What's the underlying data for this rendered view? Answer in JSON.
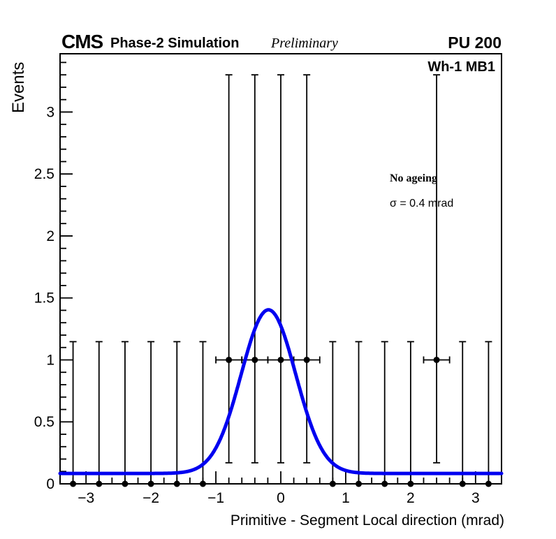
{
  "header": {
    "experiment": "CMS",
    "subtitle": "Phase-2 Simulation",
    "preliminary": "Preliminary",
    "pileup": "PU 200"
  },
  "plot_labels": {
    "region": "Wh-1 MB1",
    "ageing": "No ageing",
    "sigma_value": "σ = 0.4 mrad"
  },
  "chart_data": {
    "type": "scatter",
    "title": "",
    "xlabel": "Primitive - Segment Local direction (mrad)",
    "ylabel": "Events",
    "xlim": [
      -3.4,
      3.4
    ],
    "ylim": [
      0,
      3.47
    ],
    "grid": false,
    "x_ticks": {
      "major": [
        -3,
        -2,
        -1,
        0,
        1,
        2,
        3
      ],
      "labels": [
        "−3",
        "−2",
        "−1",
        "0",
        "1",
        "2",
        "3"
      ],
      "minor_step": 0.2
    },
    "y_ticks": {
      "major": [
        0,
        0.5,
        1,
        1.5,
        2,
        2.5,
        3
      ],
      "labels": [
        "0",
        "0.5",
        "1",
        "1.5",
        "2",
        "2.5",
        "3"
      ],
      "minor_step": 0.1
    },
    "marker_color": "#000000",
    "series": [
      {
        "name": "zero-count-bins",
        "y": 0,
        "yerr_up": 1.147,
        "x": [
          -3.2,
          -2.8,
          -2.4,
          -2.0,
          -1.6,
          -1.2,
          0.8,
          1.2,
          1.6,
          2.0,
          2.8,
          3.2
        ]
      },
      {
        "name": "one-count-bins",
        "y": 1,
        "yerr_up": 2.3,
        "yerr_down": 0.83,
        "xerr": 0.2,
        "x": [
          -0.8,
          -0.4,
          0.0,
          0.4,
          2.4
        ]
      }
    ],
    "fit_curve": {
      "name": "gaussian-fit",
      "color": "#0000f0",
      "baseline": 0.084,
      "amplitude": 1.32,
      "mean": -0.19,
      "sigma": 0.42,
      "line_width": 5
    }
  }
}
